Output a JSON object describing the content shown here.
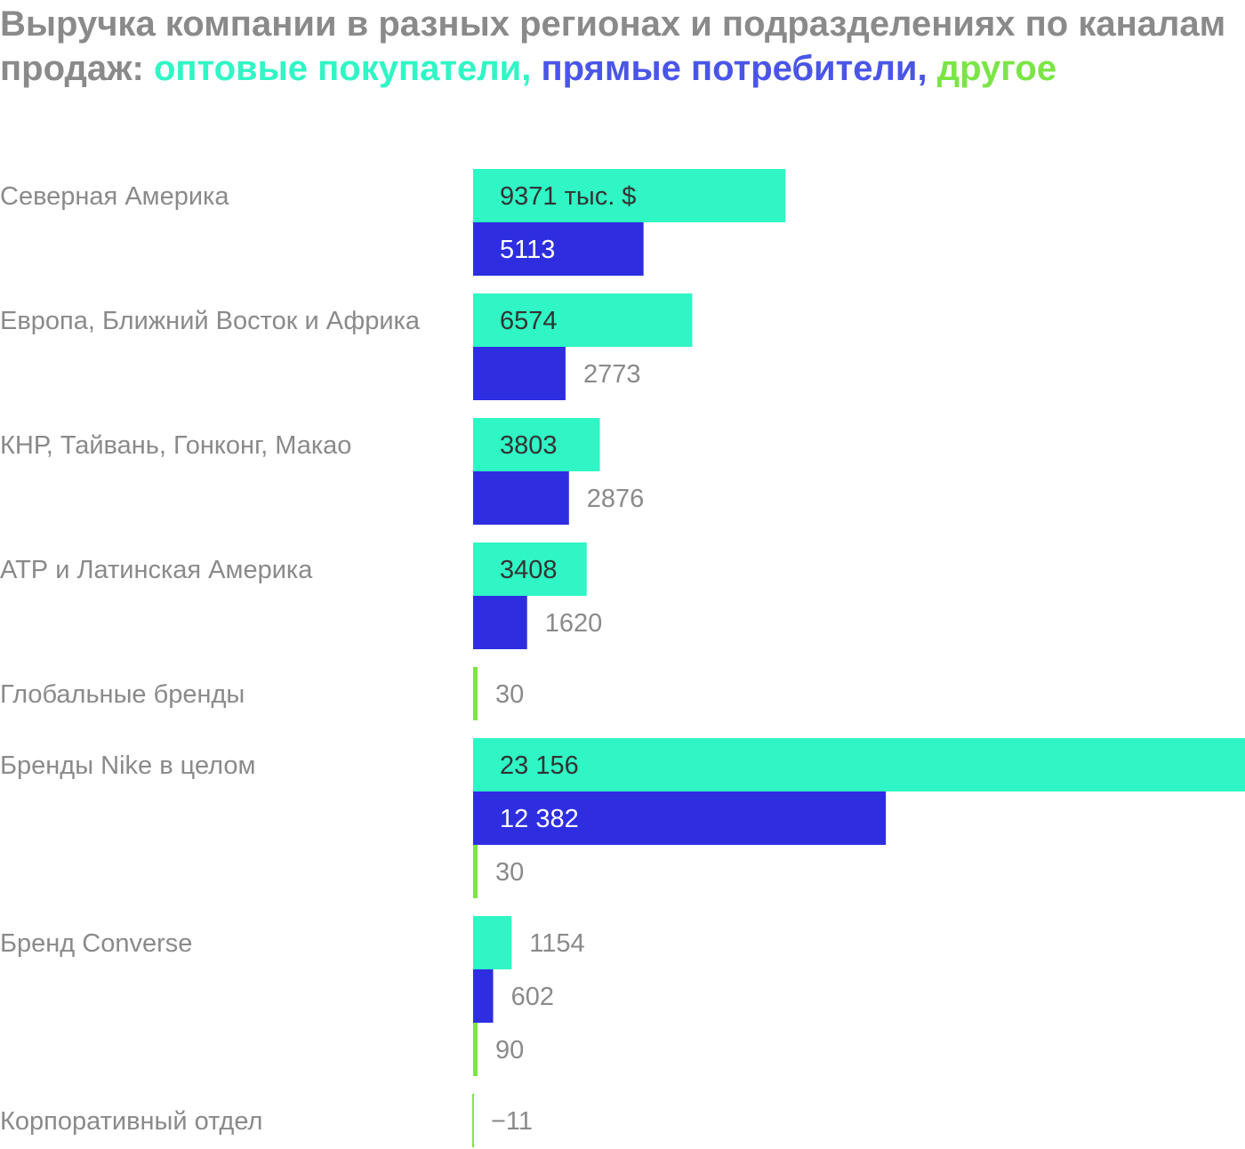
{
  "title": {
    "prefix": "Выручка компании в разных регионах и подразделениях по каналам продаж: ",
    "series_labels": [
      "оптовые покупатели",
      "прямые потребители",
      "другое"
    ],
    "separator": ", "
  },
  "colors": {
    "wholesale": "#30F5C5",
    "direct": "#2E2EE0",
    "other": "#7AE545",
    "title_gray": "#8a8a8a",
    "title_blue": "#4A55E8",
    "label_gray": "#8a8a8a",
    "inside_dark": "#333333",
    "inside_light": "#ffffff"
  },
  "chart_data": {
    "type": "bar",
    "orientation": "horizontal",
    "unit": "тыс. $",
    "xlim": [
      0,
      23156
    ],
    "categories": [
      "Северная Америка",
      "Европа, Ближний Восток и Африка",
      "КНР, Тайвань, Гонконг, Макао",
      "АТР и Латинская Америка",
      "Глобальные бренды",
      "Бренды Nike в целом",
      "Бренд Converse",
      "Корпоративный отдел"
    ],
    "series": [
      {
        "name": "оптовые покупатели",
        "values": [
          9371,
          6574,
          3803,
          3408,
          null,
          23156,
          1154,
          null
        ]
      },
      {
        "name": "прямые потребители",
        "values": [
          5113,
          2773,
          2876,
          1620,
          null,
          12382,
          602,
          null
        ]
      },
      {
        "name": "другое",
        "values": [
          null,
          null,
          null,
          null,
          30,
          30,
          90,
          -11
        ]
      }
    ],
    "value_labels": [
      [
        "9371 тыс. $",
        "6574",
        "3803",
        "3408",
        null,
        "23 156",
        "1154",
        null
      ],
      [
        "5113",
        "2773",
        "2876",
        "1620",
        null,
        "12 382",
        "602",
        null
      ],
      [
        null,
        null,
        null,
        null,
        "30",
        "30",
        "90",
        "−11"
      ]
    ],
    "grid": false,
    "legend": "in title"
  }
}
